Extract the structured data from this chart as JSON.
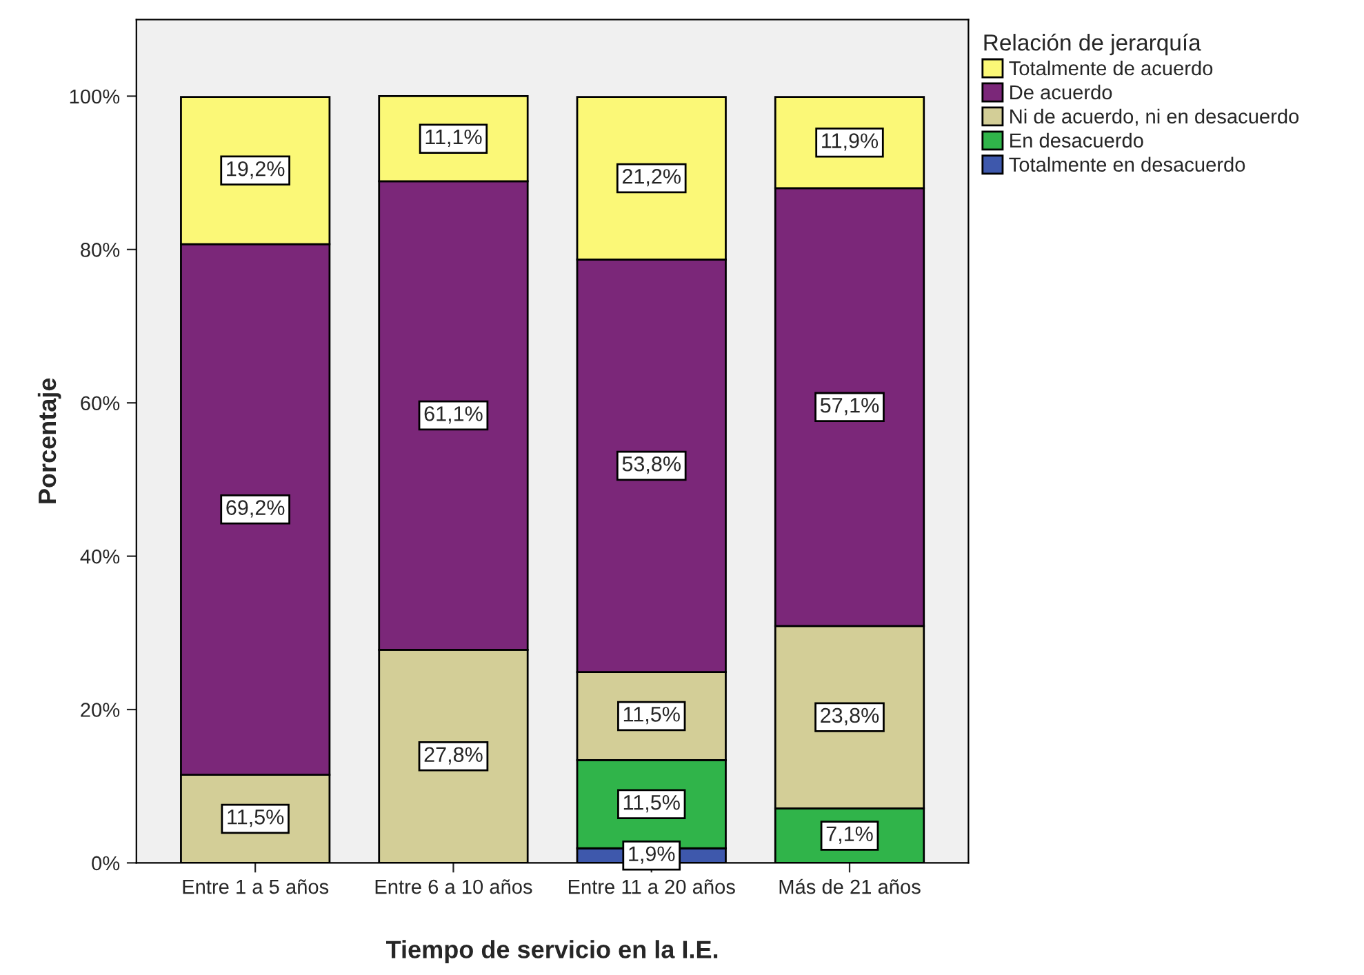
{
  "chart_data": {
    "type": "bar",
    "stacked": true,
    "xlabel": "Tiempo de servicio en la I.E.",
    "ylabel": "Porcentaje",
    "legend_title": "Relación de jerarquía",
    "legend": "top right",
    "categories": [
      "Entre 1 a 5 años",
      "Entre 6 a 10 años",
      "Entre 11 a 20 años",
      "Más de 21 años"
    ],
    "ylim": [
      0,
      110
    ],
    "yticks": [
      {
        "value": 0,
        "label": "0%"
      },
      {
        "value": 20,
        "label": "20%"
      },
      {
        "value": 40,
        "label": "40%"
      },
      {
        "value": 60,
        "label": "60%"
      },
      {
        "value": 80,
        "label": "80%"
      },
      {
        "value": 100,
        "label": "100%"
      }
    ],
    "grid": false,
    "series": [
      {
        "name": "Totalmente en desacuerdo",
        "color": "#3e58ac",
        "values": [
          null,
          null,
          1.9,
          null
        ],
        "value_labels": [
          null,
          null,
          "1,9%",
          null
        ]
      },
      {
        "name": "En desacuerdo",
        "color": "#30b44a",
        "values": [
          null,
          null,
          11.5,
          7.1
        ],
        "value_labels": [
          null,
          null,
          "11,5%",
          "7,1%"
        ]
      },
      {
        "name": "Ni de acuerdo, ni en desacuerdo",
        "color": "#d3ce97",
        "values": [
          11.5,
          27.8,
          11.5,
          23.8
        ],
        "value_labels": [
          "11,5%",
          "27,8%",
          "11,5%",
          "23,8%"
        ]
      },
      {
        "name": "De acuerdo",
        "color": "#7b2779",
        "values": [
          69.2,
          61.1,
          53.8,
          57.1
        ],
        "value_labels": [
          "69,2%",
          "61,1%",
          "53,8%",
          "57,1%"
        ]
      },
      {
        "name": "Totalmente de acuerdo",
        "color": "#fbf877",
        "values": [
          19.2,
          11.1,
          21.2,
          11.9
        ],
        "value_labels": [
          "19,2%",
          "11,1%",
          "21,2%",
          "11,9%"
        ]
      }
    ]
  }
}
